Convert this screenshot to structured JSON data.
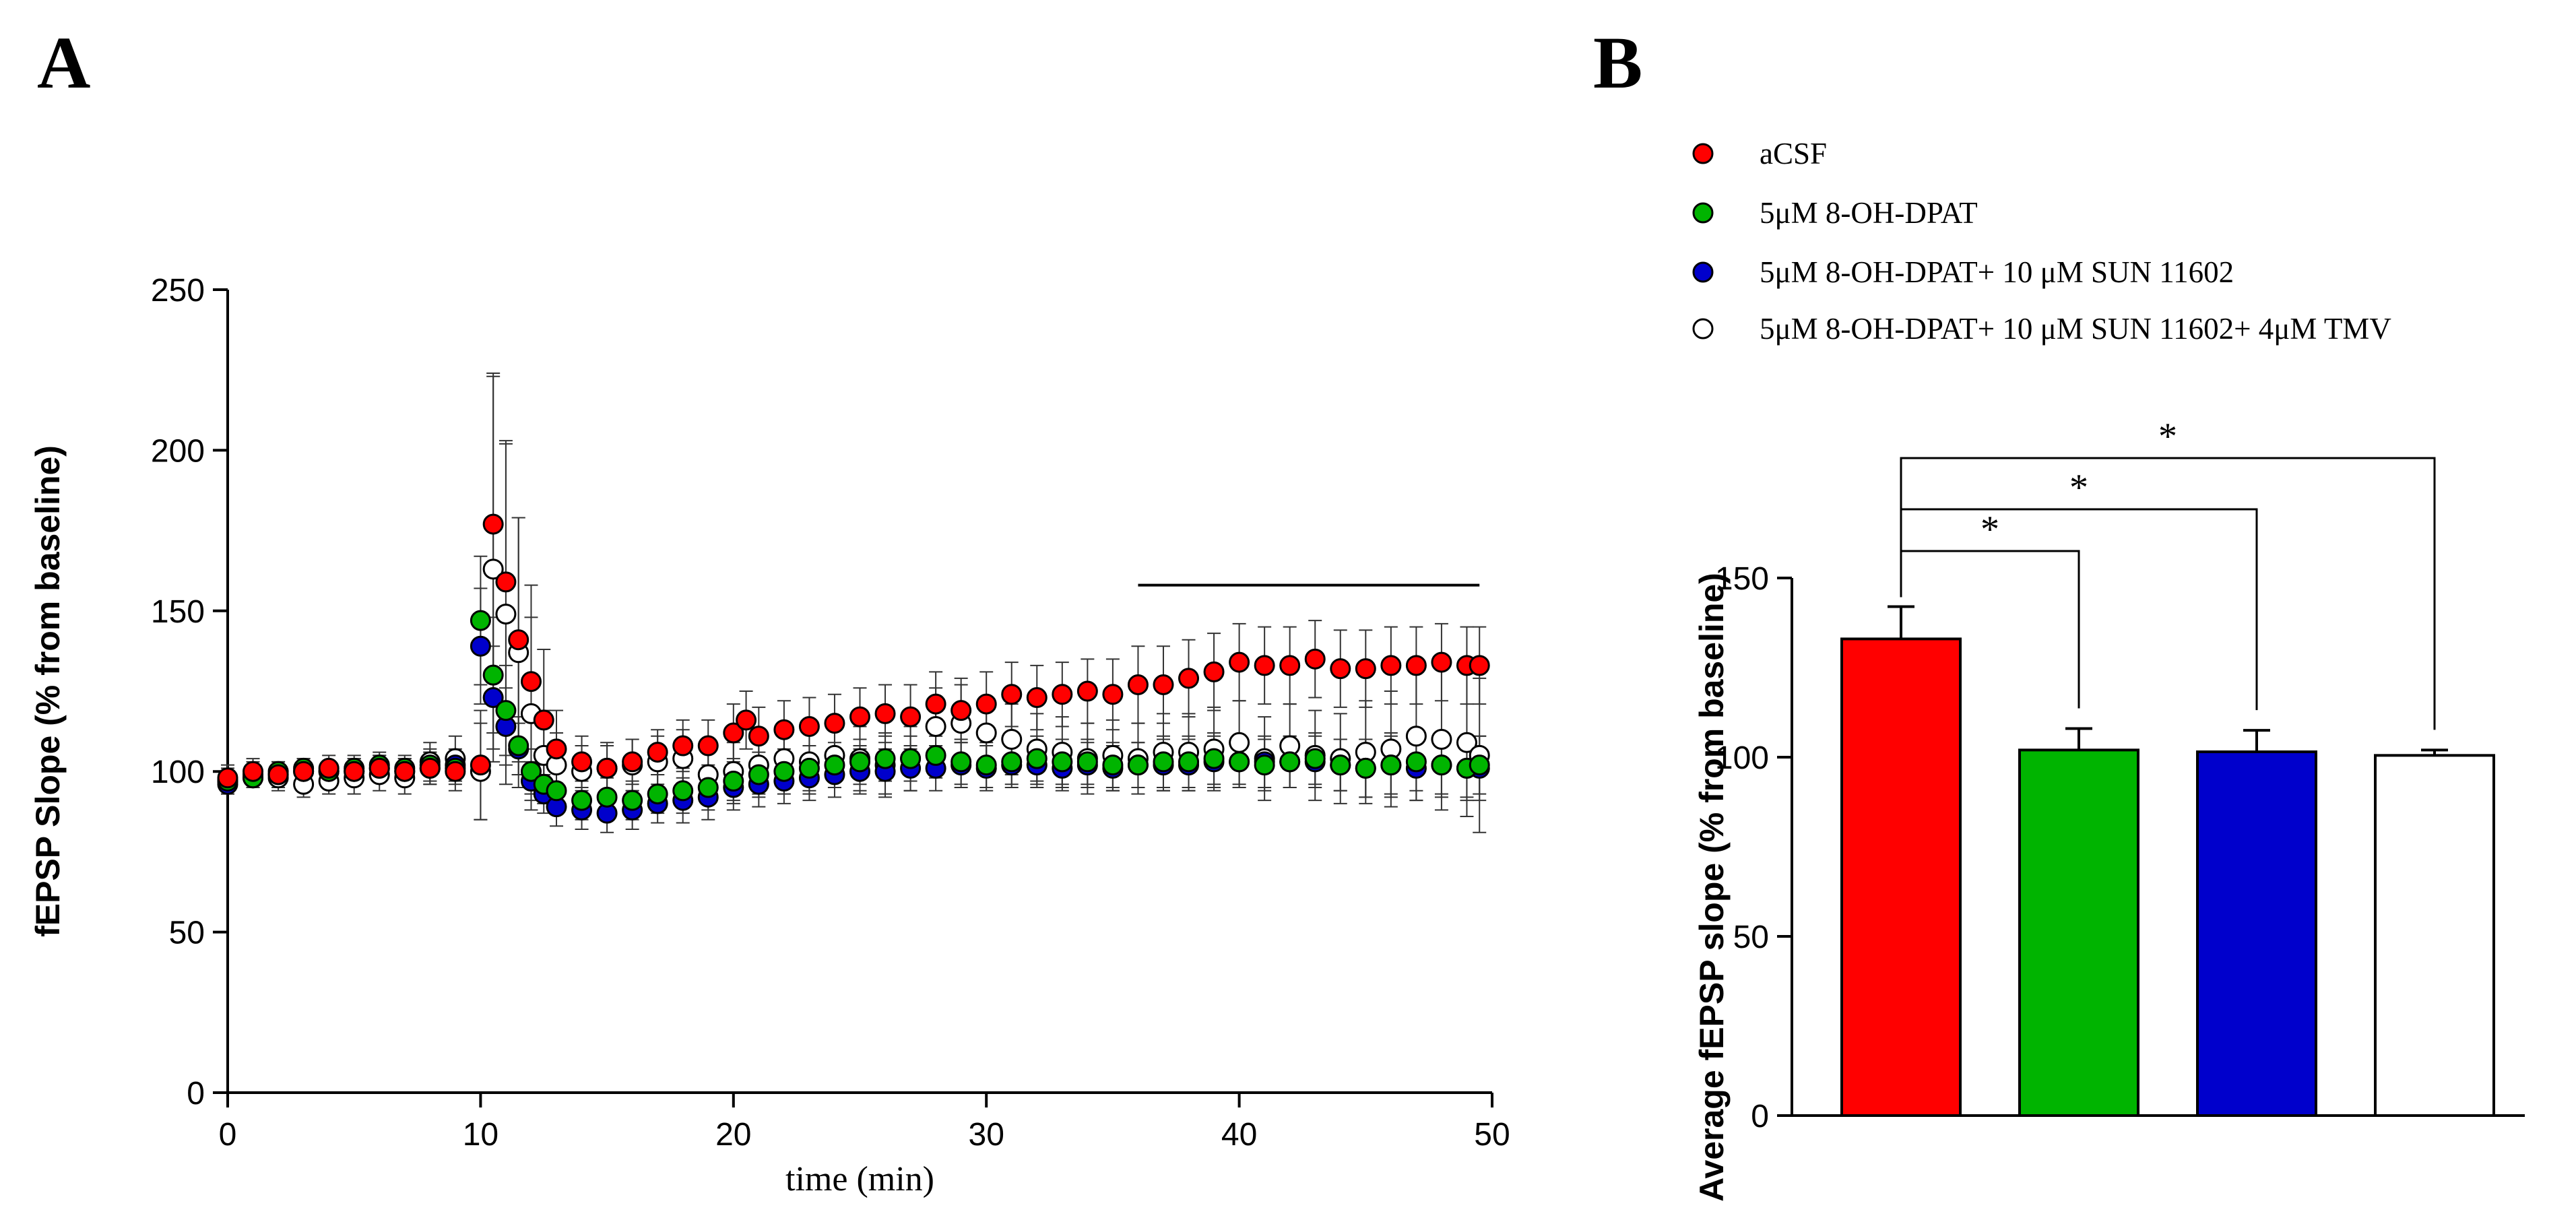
{
  "panels": {
    "a_label": "A",
    "b_label": "B"
  },
  "legend": [
    {
      "label": "aCSF",
      "color": "#ff0000",
      "filled": true
    },
    {
      "label": "5μM 8-OH-DPAT",
      "color": "#00b400",
      "filled": true
    },
    {
      "label": "5μM 8-OH-DPAT+ 10 μM SUN 11602",
      "color": "#0000cc",
      "filled": true
    },
    {
      "label": "5μM 8-OH-DPAT+ 10 μM SUN 11602+ 4μM TMV",
      "color": "#ffffff",
      "filled": false
    }
  ],
  "chart_data": [
    {
      "type": "scatter",
      "panel": "A",
      "title": "",
      "xlabel": "time (min)",
      "ylabel": "fEPSP Slope (% from baseline)",
      "xlim": [
        0,
        50
      ],
      "ylim": [
        0,
        250
      ],
      "xticks": [
        0,
        10,
        20,
        30,
        40,
        50
      ],
      "yticks": [
        0,
        50,
        100,
        150,
        200,
        250
      ],
      "grid": false,
      "annotation_bar": {
        "x_start": 36,
        "x_end": 49.5,
        "y": 158
      },
      "series": [
        {
          "name": "aCSF",
          "color": "#ff0000",
          "filled": true,
          "x": [
            0,
            1,
            2,
            3,
            4,
            5,
            6,
            7,
            8,
            9,
            10,
            10.5,
            11,
            11.5,
            12,
            12.5,
            13,
            14,
            15,
            16,
            17,
            18,
            19,
            20,
            20.5,
            21,
            22,
            23,
            24,
            25,
            26,
            27,
            28,
            29,
            30,
            31,
            32,
            33,
            34,
            35,
            36,
            37,
            38,
            39,
            40,
            41,
            42,
            43,
            44,
            45,
            46,
            47,
            48,
            49,
            49.5
          ],
          "y": [
            98,
            100,
            99,
            100,
            101,
            100,
            101,
            100,
            101,
            100,
            102,
            177,
            159,
            141,
            128,
            116,
            107,
            103,
            101,
            103,
            106,
            108,
            108,
            112,
            116,
            111,
            113,
            114,
            115,
            117,
            118,
            117,
            121,
            119,
            121,
            124,
            123,
            124,
            125,
            124,
            127,
            127,
            129,
            131,
            134,
            133,
            133,
            135,
            132,
            132,
            133,
            133,
            134,
            133,
            133
          ],
          "err": [
            4,
            4,
            4,
            4,
            4,
            4,
            4,
            4,
            5,
            6,
            17,
            47,
            44,
            38,
            30,
            22,
            12,
            8,
            7,
            7,
            7,
            8,
            8,
            9,
            9,
            9,
            9,
            9,
            9,
            9,
            9,
            10,
            10,
            10,
            10,
            10,
            10,
            10,
            10,
            11,
            12,
            12,
            12,
            12,
            12,
            12,
            12,
            12,
            12,
            12,
            12,
            12,
            12,
            12,
            12
          ]
        },
        {
          "name": "5μM 8-OH-DPAT",
          "color": "#00b400",
          "filled": true,
          "x": [
            0,
            1,
            2,
            3,
            4,
            5,
            6,
            7,
            8,
            9,
            10,
            10.5,
            11,
            11.5,
            12,
            12.5,
            13,
            14,
            15,
            16,
            17,
            18,
            19,
            20,
            21,
            22,
            23,
            24,
            25,
            26,
            27,
            28,
            29,
            30,
            31,
            32,
            33,
            34,
            35,
            36,
            37,
            38,
            39,
            40,
            41,
            42,
            43,
            44,
            45,
            46,
            47,
            48,
            49,
            49.5
          ],
          "y": [
            97,
            98,
            100,
            101,
            100,
            101,
            102,
            101,
            102,
            101,
            147,
            130,
            119,
            108,
            100,
            96,
            94,
            91,
            92,
            91,
            93,
            94,
            95,
            97,
            99,
            100,
            101,
            102,
            103,
            104,
            104,
            105,
            103,
            102,
            103,
            104,
            103,
            103,
            102,
            102,
            103,
            103,
            104,
            103,
            102,
            103,
            104,
            102,
            101,
            102,
            103,
            102,
            101,
            102
          ],
          "err": [
            3,
            3,
            3,
            3,
            3,
            4,
            4,
            4,
            5,
            5,
            20,
            18,
            14,
            9,
            7,
            6,
            6,
            6,
            6,
            6,
            6,
            7,
            7,
            7,
            7,
            7,
            7,
            7,
            7,
            7,
            7,
            7,
            7,
            7,
            7,
            7,
            7,
            7,
            7,
            7,
            8,
            8,
            8,
            8,
            8,
            8,
            8,
            8,
            9,
            9,
            9,
            9,
            9,
            9
          ]
        },
        {
          "name": "5μM 8-OH-DPAT+ 10 μM SUN 11602",
          "color": "#0000cc",
          "filled": true,
          "x": [
            0,
            1,
            2,
            3,
            4,
            5,
            6,
            7,
            8,
            9,
            10,
            10.5,
            11,
            11.5,
            12,
            12.5,
            13,
            14,
            15,
            16,
            17,
            18,
            19,
            20,
            21,
            22,
            23,
            24,
            25,
            26,
            27,
            28,
            29,
            30,
            31,
            32,
            33,
            34,
            35,
            36,
            37,
            38,
            39,
            40,
            41,
            42,
            43,
            44,
            45,
            46,
            47,
            48,
            49,
            49.5
          ],
          "y": [
            96,
            98,
            99,
            100,
            100,
            100,
            101,
            100,
            101,
            102,
            139,
            123,
            114,
            107,
            97,
            93,
            89,
            88,
            87,
            88,
            90,
            91,
            92,
            95,
            96,
            97,
            98,
            99,
            100,
            100,
            101,
            101,
            102,
            101,
            102,
            102,
            101,
            102,
            101,
            102,
            102,
            102,
            103,
            103,
            103,
            103,
            103,
            102,
            101,
            102,
            101,
            102,
            101,
            101
          ],
          "err": [
            3,
            3,
            3,
            3,
            3,
            4,
            4,
            4,
            5,
            5,
            18,
            16,
            12,
            8,
            6,
            6,
            6,
            6,
            6,
            6,
            6,
            7,
            7,
            7,
            7,
            7,
            7,
            7,
            7,
            7,
            7,
            7,
            7,
            7,
            7,
            7,
            7,
            7,
            7,
            7,
            8,
            8,
            8,
            8,
            8,
            8,
            8,
            8,
            9,
            10,
            10,
            10,
            10,
            10
          ]
        },
        {
          "name": "5μM 8-OH-DPAT+ 10 μM SUN 11602+ 4μM TMV",
          "color": "#ffffff",
          "filled": false,
          "x": [
            0,
            1,
            2,
            3,
            4,
            5,
            6,
            7,
            8,
            9,
            10,
            10.5,
            11,
            11.5,
            12,
            12.5,
            13,
            14,
            15,
            16,
            17,
            18,
            19,
            20,
            21,
            22,
            23,
            24,
            25,
            26,
            27,
            28,
            29,
            30,
            31,
            32,
            33,
            34,
            35,
            36,
            37,
            38,
            39,
            40,
            41,
            42,
            43,
            44,
            45,
            46,
            47,
            48,
            49,
            49.5
          ],
          "y": [
            97,
            99,
            98,
            96,
            97,
            98,
            99,
            98,
            103,
            104,
            100,
            163,
            149,
            137,
            118,
            105,
            102,
            100,
            101,
            102,
            103,
            104,
            99,
            100,
            102,
            104,
            103,
            105,
            104,
            102,
            104,
            114,
            115,
            112,
            110,
            107,
            106,
            104,
            105,
            104,
            106,
            106,
            107,
            109,
            104,
            108,
            105,
            104,
            106,
            107,
            111,
            110,
            109,
            105
          ],
          "err": [
            4,
            4,
            4,
            4,
            4,
            5,
            5,
            5,
            6,
            7,
            15,
            60,
            53,
            42,
            30,
            14,
            10,
            8,
            8,
            8,
            8,
            9,
            9,
            9,
            9,
            9,
            10,
            10,
            10,
            10,
            10,
            12,
            12,
            11,
            11,
            11,
            11,
            11,
            11,
            11,
            12,
            12,
            13,
            13,
            13,
            13,
            14,
            14,
            16,
            18,
            20,
            22,
            23,
            24
          ]
        }
      ]
    },
    {
      "type": "bar",
      "panel": "B",
      "title": "",
      "xlabel": "",
      "ylabel": "Average fEPSP slope (% from baseline)",
      "ylim": [
        0,
        150
      ],
      "yticks": [
        0,
        50,
        100,
        150
      ],
      "grid": false,
      "categories": [
        "aCSF",
        "5μM 8-OH-DPAT",
        "5μM 8-OH-DPAT+ 10 μM SUN 11602",
        "5μM 8-OH-DPAT+ 10 μM SUN 11602+ 4μM TMV"
      ],
      "values": [
        133,
        102,
        101.5,
        100.5
      ],
      "errors": [
        9,
        6,
        6,
        1.5
      ],
      "colors": [
        "#ff0000",
        "#00b400",
        "#0000cc",
        "#ffffff"
      ],
      "significance": [
        {
          "from": 0,
          "to": 1,
          "label": "*",
          "level": 1
        },
        {
          "from": 0,
          "to": 2,
          "label": "*",
          "level": 2
        },
        {
          "from": 0,
          "to": 3,
          "label": "*",
          "level": 3
        }
      ]
    }
  ]
}
